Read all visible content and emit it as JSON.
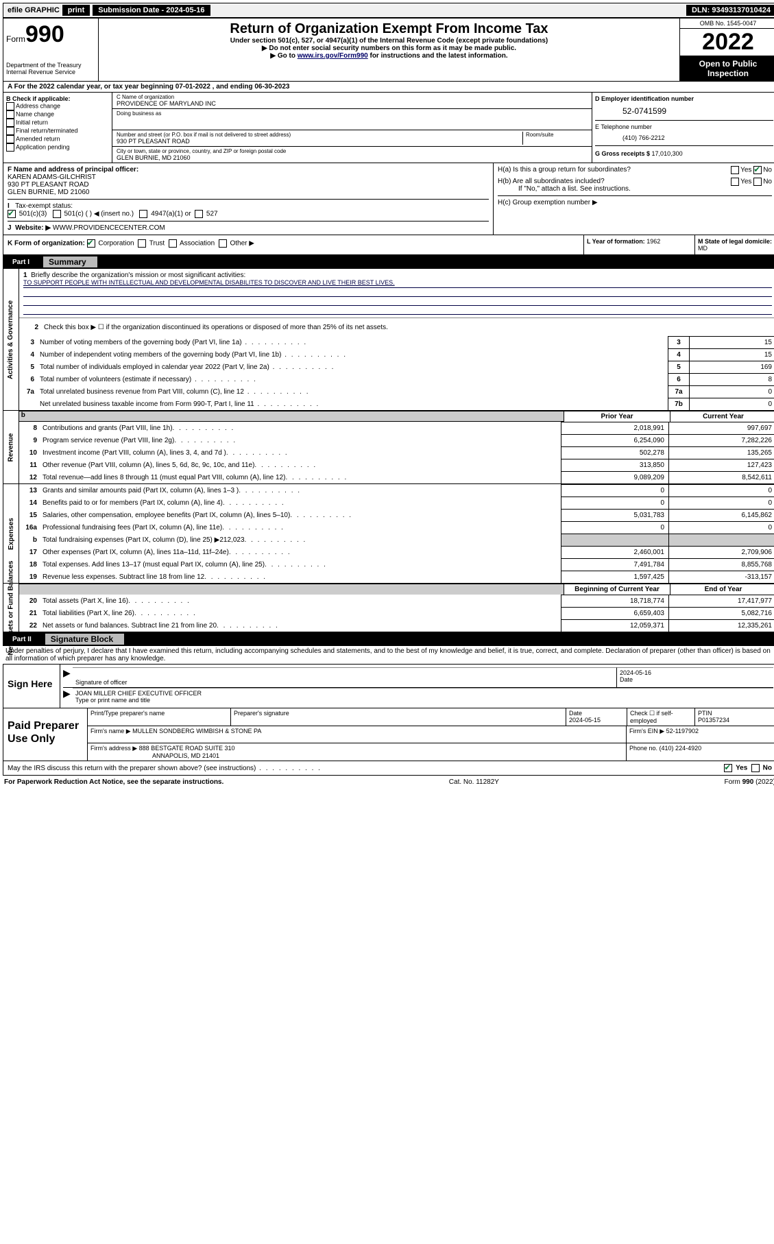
{
  "topbar": {
    "efile": "efile GRAPHIC",
    "print": "print",
    "sub_date_lbl": "Submission Date - 2024-05-16",
    "dln": "DLN: 93493137010424"
  },
  "header": {
    "form_word": "Form",
    "form_num": "990",
    "dept": "Department of the Treasury",
    "irs": "Internal Revenue Service",
    "title": "Return of Organization Exempt From Income Tax",
    "sub1": "Under section 501(c), 527, or 4947(a)(1) of the Internal Revenue Code (except private foundations)",
    "sub2": "▶ Do not enter social security numbers on this form as it may be made public.",
    "sub3_pre": "▶ Go to ",
    "sub3_link": "www.irs.gov/Form990",
    "sub3_post": " for instructions and the latest information.",
    "omb": "OMB No. 1545-0047",
    "year": "2022",
    "open": "Open to Public Inspection"
  },
  "rowA": {
    "text_pre": "A For the 2022 calendar year, or tax year beginning ",
    "begin": "07-01-2022",
    "mid": "   , and ending ",
    "end": "06-30-2023"
  },
  "colB": {
    "hdr": "B Check if applicable:",
    "items": [
      "Address change",
      "Name change",
      "Initial return",
      "Final return/terminated",
      "Amended return",
      "Application pending"
    ]
  },
  "colC": {
    "name_lbl": "C Name of organization",
    "name": "PROVIDENCE OF MARYLAND INC",
    "dba_lbl": "Doing business as",
    "dba": "",
    "street_lbl": "Number and street (or P.O. box if mail is not delivered to street address)",
    "room_lbl": "Room/suite",
    "street": "930 PT PLEASANT ROAD",
    "city_lbl": "City or town, state or province, country, and ZIP or foreign postal code",
    "city": "GLEN BURNIE, MD  21060"
  },
  "colDE": {
    "d_lbl": "D Employer identification number",
    "ein": "52-0741599",
    "e_lbl": "E Telephone number",
    "phone": "(410) 766-2212",
    "g_lbl": "G Gross receipts $ ",
    "g_val": "17,010,300"
  },
  "F": {
    "lbl": "F Name and address of principal officer:",
    "l1": "KAREN ADAMS-GILCHRIST",
    "l2": "930 PT PLEASANT ROAD",
    "l3": "GLEN BURNIE, MD  21060"
  },
  "I": {
    "lbl": "Tax-exempt status:",
    "o1": "501(c)(3)",
    "o2": "501(c) (  ) ◀ (insert no.)",
    "o3": "4947(a)(1) or",
    "o4": "527"
  },
  "J": {
    "lbl": "Website: ▶",
    "val": "WWW.PROVIDENCECENTER.COM"
  },
  "H": {
    "a": "H(a)  Is this a group return for subordinates?",
    "b": "H(b)  Are all subordinates included?",
    "b_note": "If \"No,\" attach a list. See instructions.",
    "c": "H(c)  Group exemption number ▶",
    "yes": "Yes",
    "no": "No"
  },
  "K": {
    "lbl": "K Form of organization:",
    "corp": "Corporation",
    "trust": "Trust",
    "assoc": "Association",
    "other": "Other ▶",
    "L_lbl": "L Year of formation: ",
    "L_val": "1962",
    "M_lbl": "M State of legal domicile:",
    "M_val": "MD"
  },
  "part1": {
    "num": "Part I",
    "title": "Summary",
    "q1_lbl": "Briefly describe the organization's mission or most significant activities:",
    "q1_val": "TO SUPPORT PEOPLE WITH INTELLECTUAL AND DEVELOPMENTAL DISABILITES TO DISCOVER AND LIVE THEIR BEST LIVES.",
    "q2": "Check this box ▶ ☐  if the organization discontinued its operations or disposed of more than 25% of its net assets.",
    "lines_gov": [
      {
        "n": "3",
        "desc": "Number of voting members of the governing body (Part VI, line 1a)",
        "box": "3",
        "val": "15"
      },
      {
        "n": "4",
        "desc": "Number of independent voting members of the governing body (Part VI, line 1b)",
        "box": "4",
        "val": "15"
      },
      {
        "n": "5",
        "desc": "Total number of individuals employed in calendar year 2022 (Part V, line 2a)",
        "box": "5",
        "val": "169"
      },
      {
        "n": "6",
        "desc": "Total number of volunteers (estimate if necessary)",
        "box": "6",
        "val": "8"
      },
      {
        "n": "7a",
        "desc": "Total unrelated business revenue from Part VIII, column (C), line 12",
        "box": "7a",
        "val": "0"
      },
      {
        "n": "",
        "desc": "Net unrelated business taxable income from Form 990-T, Part I, line 11",
        "box": "7b",
        "val": "0"
      }
    ],
    "col_prior": "Prior Year",
    "col_curr": "Current Year",
    "revenue": [
      {
        "n": "8",
        "desc": "Contributions and grants (Part VIII, line 1h)",
        "p": "2,018,991",
        "c": "997,697"
      },
      {
        "n": "9",
        "desc": "Program service revenue (Part VIII, line 2g)",
        "p": "6,254,090",
        "c": "7,282,226"
      },
      {
        "n": "10",
        "desc": "Investment income (Part VIII, column (A), lines 3, 4, and 7d )",
        "p": "502,278",
        "c": "135,265"
      },
      {
        "n": "11",
        "desc": "Other revenue (Part VIII, column (A), lines 5, 6d, 8c, 9c, 10c, and 11e)",
        "p": "313,850",
        "c": "127,423"
      },
      {
        "n": "12",
        "desc": "Total revenue—add lines 8 through 11 (must equal Part VIII, column (A), line 12)",
        "p": "9,089,209",
        "c": "8,542,611"
      }
    ],
    "expenses": [
      {
        "n": "13",
        "desc": "Grants and similar amounts paid (Part IX, column (A), lines 1–3 )",
        "p": "0",
        "c": "0"
      },
      {
        "n": "14",
        "desc": "Benefits paid to or for members (Part IX, column (A), line 4)",
        "p": "0",
        "c": "0"
      },
      {
        "n": "15",
        "desc": "Salaries, other compensation, employee benefits (Part IX, column (A), lines 5–10)",
        "p": "5,031,783",
        "c": "6,145,862"
      },
      {
        "n": "16a",
        "desc": "Professional fundraising fees (Part IX, column (A), line 11e)",
        "p": "0",
        "c": "0"
      },
      {
        "n": "b",
        "desc": "Total fundraising expenses (Part IX, column (D), line 25) ▶212,023",
        "p": "",
        "c": "",
        "grey": true
      },
      {
        "n": "17",
        "desc": "Other expenses (Part IX, column (A), lines 11a–11d, 11f–24e)",
        "p": "2,460,001",
        "c": "2,709,906"
      },
      {
        "n": "18",
        "desc": "Total expenses. Add lines 13–17 (must equal Part IX, column (A), line 25)",
        "p": "7,491,784",
        "c": "8,855,768"
      },
      {
        "n": "19",
        "desc": "Revenue less expenses. Subtract line 18 from line 12",
        "p": "1,597,425",
        "c": "-313,157"
      }
    ],
    "col_begin": "Beginning of Current Year",
    "col_end": "End of Year",
    "netassets": [
      {
        "n": "20",
        "desc": "Total assets (Part X, line 16)",
        "p": "18,718,774",
        "c": "17,417,977"
      },
      {
        "n": "21",
        "desc": "Total liabilities (Part X, line 26)",
        "p": "6,659,403",
        "c": "5,082,716"
      },
      {
        "n": "22",
        "desc": "Net assets or fund balances. Subtract line 21 from line 20",
        "p": "12,059,371",
        "c": "12,335,261"
      }
    ],
    "vlabels": {
      "gov": "Activities & Governance",
      "rev": "Revenue",
      "exp": "Expenses",
      "net": "Net Assets or Fund Balances"
    }
  },
  "part2": {
    "num": "Part II",
    "title": "Signature Block",
    "declare": "Under penalties of perjury, I declare that I have examined this return, including accompanying schedules and statements, and to the best of my knowledge and belief, it is true, correct, and complete. Declaration of preparer (other than officer) is based on all information of which preparer has any knowledge."
  },
  "sign": {
    "here": "Sign Here",
    "sig_lbl": "Signature of officer",
    "date_lbl": "Date",
    "date_val": "2024-05-16",
    "name_val": "JOAN MILLER  CHIEF EXECUTIVE OFFICER",
    "name_lbl": "Type or print name and title"
  },
  "preparer": {
    "hdr": "Paid Preparer Use Only",
    "name_lbl": "Print/Type preparer's name",
    "sig_lbl": "Preparer's signature",
    "date_lbl": "Date",
    "date_val": "2024-05-15",
    "chk_lbl": "Check ☐ if self-employed",
    "ptin_lbl": "PTIN",
    "ptin_val": "P01357234",
    "firm_name_lbl": "Firm's name    ▶",
    "firm_name": "MULLEN SONDBERG WIMBISH & STONE PA",
    "firm_ein_lbl": "Firm's EIN ▶",
    "firm_ein": "52-1197902",
    "firm_addr_lbl": "Firm's address ▶",
    "firm_addr1": "888 BESTGATE ROAD SUITE 310",
    "firm_addr2": "ANNAPOLIS, MD  21401",
    "phone_lbl": "Phone no. ",
    "phone_val": "(410) 224-4920"
  },
  "discuss": {
    "q": "May the IRS discuss this return with the preparer shown above? (see instructions)",
    "yes": "Yes",
    "no": "No"
  },
  "footer": {
    "left": "For Paperwork Reduction Act Notice, see the separate instructions.",
    "mid": "Cat. No. 11282Y",
    "right_pre": "Form ",
    "right_b": "990",
    "right_post": " (2022)"
  }
}
